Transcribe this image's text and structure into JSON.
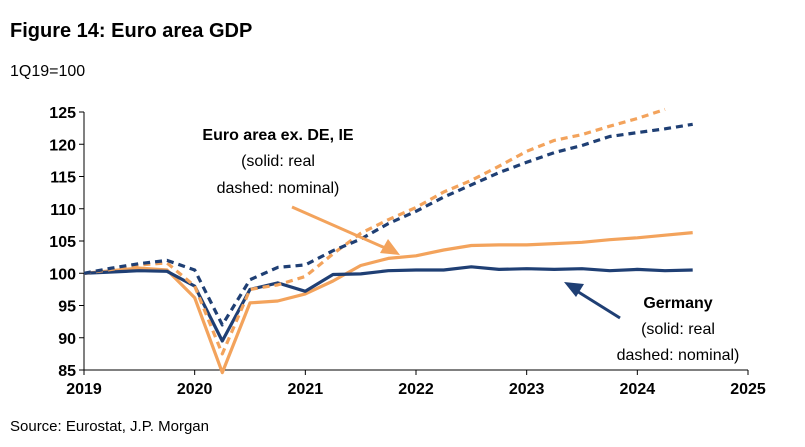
{
  "header": {
    "title": "Figure 14: Euro area GDP",
    "subtitle": "1Q19=100"
  },
  "source": "Source: Eurostat, J.P. Morgan",
  "annotations": {
    "euro": {
      "title": "Euro area ex. DE, IE",
      "line1": "(solid: real",
      "line2": "dashed: nominal)"
    },
    "germany": {
      "title": "Germany",
      "line1": "(solid: real",
      "line2": "dashed: nominal)"
    }
  },
  "colors": {
    "germany": "#1f3f74",
    "euro": "#f3a35c"
  },
  "chart_data": {
    "type": "line",
    "title": "Figure 14: Euro area GDP",
    "subtitle": "1Q19=100",
    "xlim": [
      2019,
      2025
    ],
    "ylim": [
      85,
      125
    ],
    "x_ticks": [
      2019,
      2020,
      2021,
      2022,
      2023,
      2024,
      2025
    ],
    "y_ticks": [
      85,
      90,
      95,
      100,
      105,
      110,
      115,
      120,
      125
    ],
    "grid": false,
    "x": [
      2019.0,
      2019.25,
      2019.5,
      2019.75,
      2020.0,
      2020.25,
      2020.5,
      2020.75,
      2021.0,
      2021.25,
      2021.5,
      2021.75,
      2022.0,
      2022.25,
      2022.5,
      2022.75,
      2023.0,
      2023.25,
      2023.5,
      2023.75,
      2024.0,
      2024.25,
      2024.5
    ],
    "series": [
      {
        "name": "Germany real",
        "style": "solid",
        "color": "#1f3f74",
        "values": [
          100,
          100.2,
          100.4,
          100.3,
          98.0,
          89.5,
          97.5,
          98.5,
          97.2,
          99.8,
          99.9,
          100.4,
          100.5,
          100.5,
          101.0,
          100.6,
          100.7,
          100.6,
          100.7,
          100.4,
          100.6,
          100.4,
          100.5
        ]
      },
      {
        "name": "Germany nominal",
        "style": "dashed",
        "color": "#1f3f74",
        "values": [
          100,
          100.8,
          101.5,
          102.0,
          100.5,
          92.0,
          99.0,
          100.9,
          101.3,
          103.5,
          105.3,
          107.7,
          109.6,
          111.8,
          113.7,
          115.6,
          117.2,
          118.7,
          119.8,
          121.2,
          121.8,
          122.4,
          123.1
        ]
      },
      {
        "name": "Euro area ex. DE, IE real",
        "style": "solid",
        "color": "#f3a35c",
        "values": [
          100,
          100.4,
          100.8,
          100.5,
          96.2,
          84.6,
          95.4,
          95.7,
          96.8,
          98.8,
          101.2,
          102.3,
          102.7,
          103.6,
          104.3,
          104.4,
          104.4,
          104.6,
          104.8,
          105.2,
          105.5,
          105.9,
          106.3
        ]
      },
      {
        "name": "Euro area ex. DE, IE nominal",
        "style": "dashed",
        "color": "#f3a35c",
        "values": [
          100,
          100.6,
          101.3,
          101.6,
          98.0,
          87.5,
          97.5,
          98.2,
          99.5,
          103.0,
          106.2,
          108.3,
          110.2,
          112.6,
          114.4,
          116.6,
          118.9,
          120.6,
          121.5,
          122.8,
          124.0,
          125.4,
          null
        ]
      }
    ]
  }
}
